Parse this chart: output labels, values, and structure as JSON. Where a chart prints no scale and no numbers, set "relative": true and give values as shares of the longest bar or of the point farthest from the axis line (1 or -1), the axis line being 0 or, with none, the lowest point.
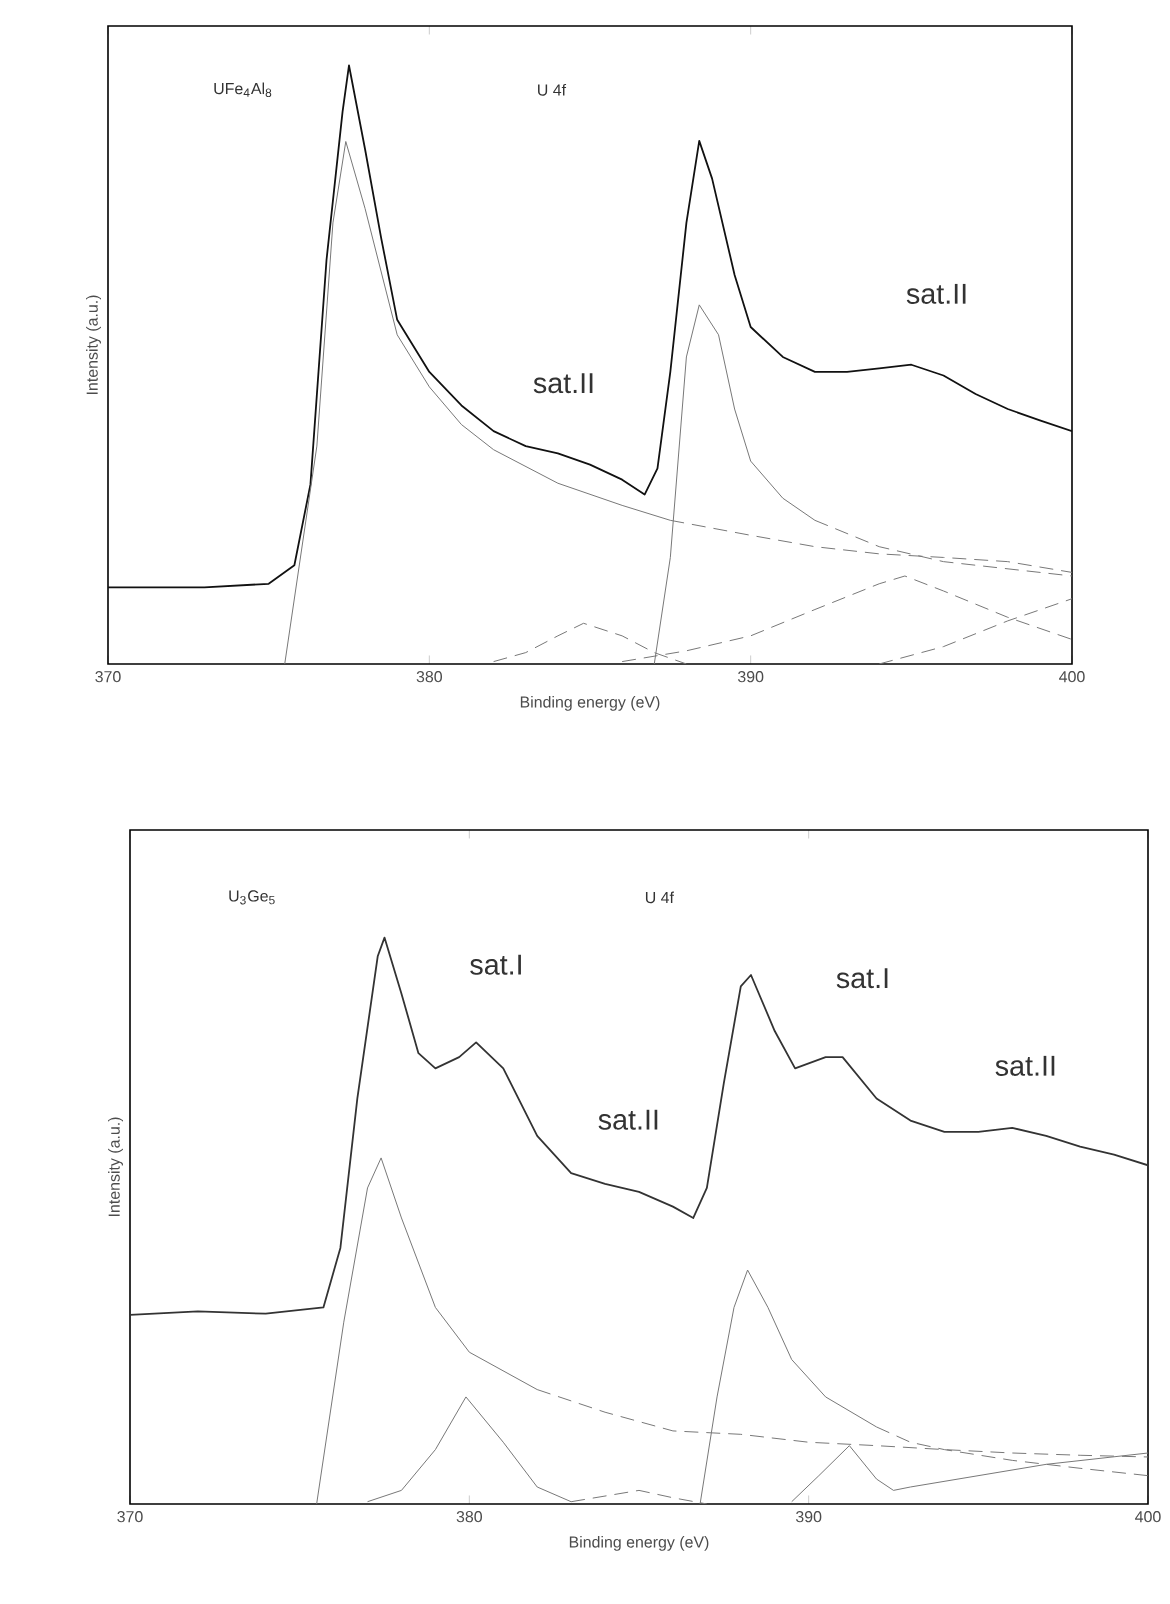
{
  "chart_data": [
    {
      "type": "line",
      "relative": true,
      "xlabel": "Binding energy (eV)",
      "ylabel": "Intensity (a.u.)",
      "xlim": [
        370,
        400
      ],
      "xticks": [
        370,
        380,
        390,
        400
      ],
      "annotations": [
        "UFe$_{4}$Al$_{8}$",
        "U 4f",
        "sat.II",
        "sat.II"
      ],
      "series": [
        {
          "color": "#111111",
          "line_style": "solid",
          "x": [
            370,
            373,
            375,
            375.8,
            376.3,
            376.8,
            377.3,
            377.5,
            378,
            378.5,
            379,
            380,
            381,
            382,
            383,
            384,
            385,
            386,
            386.7,
            387.1,
            387.5,
            388,
            388.4,
            388.8,
            389.5,
            390,
            391,
            392,
            393,
            394,
            395,
            396,
            397,
            398,
            399,
            400
          ],
          "values": [
            0.128,
            0.128,
            0.134,
            0.165,
            0.3,
            0.675,
            0.923,
            1.0,
            0.86,
            0.712,
            0.575,
            0.488,
            0.432,
            0.389,
            0.364,
            0.352,
            0.333,
            0.308,
            0.283,
            0.327,
            0.488,
            0.737,
            0.874,
            0.811,
            0.65,
            0.563,
            0.513,
            0.488,
            0.488,
            0.494,
            0.5,
            0.482,
            0.451,
            0.426,
            0.407,
            0.389
          ]
        },
        {
          "color": "#777777",
          "line_style": "solid",
          "x": [
            375.5,
            376.5,
            377,
            377.4,
            378,
            379,
            380,
            381,
            382,
            384,
            386,
            387.5
          ],
          "values": [
            0,
            0.364,
            0.737,
            0.873,
            0.761,
            0.55,
            0.463,
            0.4,
            0.358,
            0.302,
            0.265,
            0.24
          ]
        },
        {
          "color": "#777777",
          "line_style": "dashed",
          "x": [
            387.5,
            390,
            392,
            394,
            396,
            398,
            400
          ],
          "values": [
            0.24,
            0.215,
            0.196,
            0.184,
            0.178,
            0.171,
            0.153
          ]
        },
        {
          "color": "#777777",
          "line_style": "solid",
          "x": [
            387,
            387.5,
            388,
            388.4,
            389,
            389.5,
            390,
            391,
            392
          ],
          "values": [
            0,
            0.178,
            0.513,
            0.6,
            0.55,
            0.426,
            0.339,
            0.277,
            0.24
          ]
        },
        {
          "color": "#777777",
          "line_style": "dashed",
          "x": [
            392,
            394,
            396,
            398,
            400
          ],
          "values": [
            0.24,
            0.196,
            0.171,
            0.159,
            0.147
          ]
        },
        {
          "color": "#777777",
          "line_style": "dashed",
          "x": [
            382,
            383,
            384,
            384.8,
            386,
            387,
            388
          ],
          "values": [
            0.004,
            0.019,
            0.047,
            0.068,
            0.047,
            0.019,
            0
          ]
        },
        {
          "color": "#777777",
          "line_style": "dashed",
          "x": [
            386,
            388,
            390,
            392,
            394,
            394.8,
            396,
            398,
            400
          ],
          "values": [
            0.004,
            0.022,
            0.047,
            0.091,
            0.134,
            0.147,
            0.122,
            0.078,
            0.041
          ]
        },
        {
          "color": "#777777",
          "line_style": "dashed",
          "x": [
            394,
            396,
            398,
            400
          ],
          "values": [
            0,
            0.029,
            0.072,
            0.109
          ]
        }
      ]
    },
    {
      "type": "line",
      "relative": true,
      "xlabel": "Binding energy (eV)",
      "ylabel": "Intensity (a.u.)",
      "xlim": [
        370,
        400
      ],
      "xticks": [
        370,
        380,
        390,
        400
      ],
      "annotations": [
        "U$_{3}$Ge$_{5}$",
        "U 4f",
        "sat.I",
        "sat.II",
        "sat.I",
        "sat.II"
      ],
      "series": [
        {
          "color": "#333333",
          "line_style": "solid",
          "x": [
            370,
            372,
            374,
            375.7,
            376.2,
            376.7,
            377.3,
            377.5,
            378,
            378.5,
            379,
            379.7,
            380.2,
            381,
            382,
            383,
            384,
            385,
            386,
            386.6,
            387,
            387.5,
            388,
            388.3,
            389,
            389.6,
            390.5,
            391,
            392,
            393,
            394,
            395,
            396,
            397,
            398,
            399,
            400
          ],
          "values": [
            0.334,
            0.34,
            0.336,
            0.347,
            0.452,
            0.716,
            0.967,
            1.0,
            0.901,
            0.796,
            0.769,
            0.789,
            0.815,
            0.769,
            0.65,
            0.584,
            0.565,
            0.551,
            0.525,
            0.505,
            0.558,
            0.743,
            0.914,
            0.934,
            0.835,
            0.769,
            0.789,
            0.789,
            0.716,
            0.677,
            0.657,
            0.657,
            0.664,
            0.65,
            0.631,
            0.617,
            0.598
          ]
        },
        {
          "color": "#777777",
          "line_style": "solid",
          "x": [
            375.5,
            376.3,
            377,
            377.4,
            378,
            379,
            380,
            382
          ],
          "values": [
            0,
            0.321,
            0.558,
            0.611,
            0.505,
            0.347,
            0.268,
            0.202
          ]
        },
        {
          "color": "#777777",
          "line_style": "dashed",
          "x": [
            382,
            384,
            386,
            388,
            390,
            392,
            394,
            396,
            398,
            400
          ],
          "values": [
            0.202,
            0.162,
            0.129,
            0.123,
            0.109,
            0.103,
            0.096,
            0.09,
            0.086,
            0.083
          ]
        },
        {
          "color": "#777777",
          "line_style": "solid",
          "x": [
            386.8,
            387.3,
            387.8,
            388.2,
            388.8,
            389.5,
            390.5,
            392
          ],
          "values": [
            0,
            0.189,
            0.347,
            0.413,
            0.347,
            0.255,
            0.189,
            0.136
          ]
        },
        {
          "color": "#777777",
          "line_style": "dashed",
          "x": [
            392,
            393,
            394,
            396,
            398,
            400
          ],
          "values": [
            0.136,
            0.109,
            0.096,
            0.077,
            0.063,
            0.05
          ]
        },
        {
          "color": "#777777",
          "line_style": "solid",
          "x": [
            377,
            378,
            379,
            379.9,
            381,
            382,
            383
          ],
          "values": [
            0.004,
            0.024,
            0.096,
            0.189,
            0.109,
            0.03,
            0.004
          ]
        },
        {
          "color": "#777777",
          "line_style": "solid",
          "x": [
            389.5,
            390.3,
            391.2,
            392,
            392.5,
            393,
            395,
            397,
            400
          ],
          "values": [
            0.004,
            0.05,
            0.103,
            0.044,
            0.024,
            0.03,
            0.05,
            0.07,
            0.09
          ]
        },
        {
          "color": "#777777",
          "line_style": "dashed",
          "x": [
            383,
            385,
            386,
            387
          ],
          "values": [
            0.004,
            0.024,
            0.011,
            0
          ]
        }
      ]
    }
  ]
}
